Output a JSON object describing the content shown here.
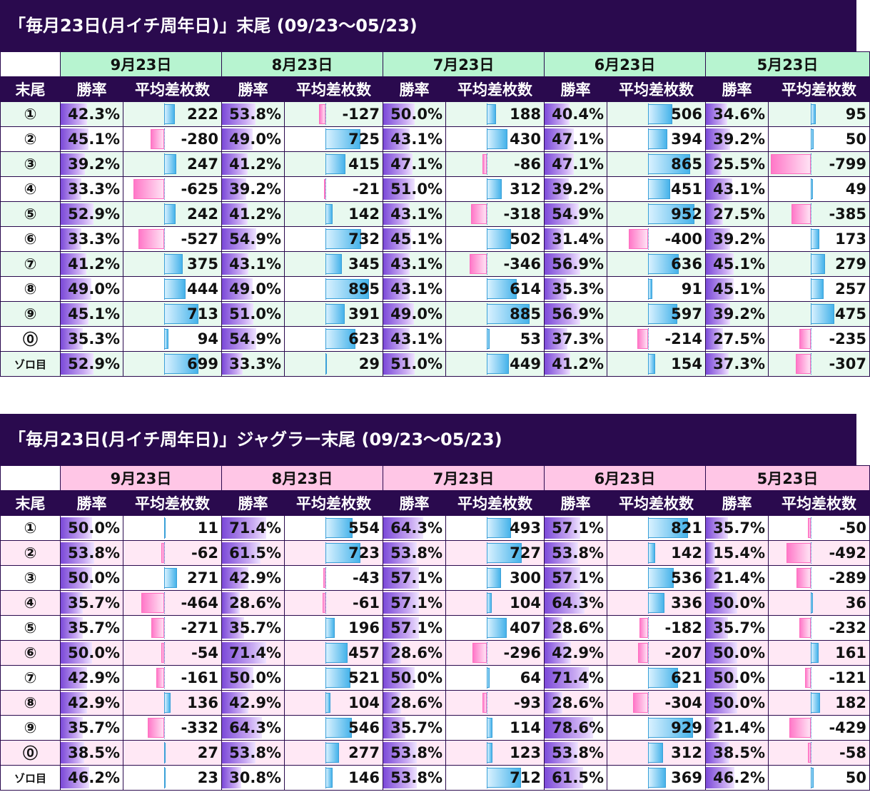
{
  "colors": {
    "title_bg": "#2a0a4e",
    "header_bg": "#2a0a4e",
    "table1_month_bg": "#b7f4d0",
    "table2_month_bg": "#ffc6e6",
    "rate_bar": "#7b49d8",
    "positive_bar": "#46b3ea",
    "negative_bar": "#ff78c8"
  },
  "tables": [
    {
      "title": "「毎月23日(月イチ周年日)」末尾 (09/23〜05/23)",
      "corner_label": "末尾",
      "rate_label": "勝率",
      "diff_label": "平均差枚数",
      "months": [
        "9月23日",
        "8月23日",
        "7月23日",
        "6月23日",
        "5月23日"
      ],
      "rows": [
        {
          "label": "①",
          "cells": [
            [
              "42.3%",
              0,
              222
            ],
            [
              "53.8%",
              0,
              -127
            ],
            [
              "50.0%",
              0,
              188
            ],
            [
              "40.4%",
              0,
              506
            ],
            [
              "34.6%",
              0,
              95
            ]
          ]
        },
        {
          "label": "②",
          "cells": [
            [
              "45.1%",
              0,
              -280
            ],
            [
              "49.0%",
              0,
              725
            ],
            [
              "43.1%",
              0,
              430
            ],
            [
              "47.1%",
              0,
              394
            ],
            [
              "39.2%",
              0,
              50
            ]
          ]
        },
        {
          "label": "③",
          "cells": [
            [
              "39.2%",
              0,
              247
            ],
            [
              "41.2%",
              0,
              415
            ],
            [
              "47.1%",
              0,
              -86
            ],
            [
              "47.1%",
              0,
              865
            ],
            [
              "25.5%",
              0,
              -799
            ]
          ]
        },
        {
          "label": "④",
          "cells": [
            [
              "33.3%",
              0,
              -625
            ],
            [
              "39.2%",
              0,
              -21
            ],
            [
              "51.0%",
              0,
              312
            ],
            [
              "39.2%",
              0,
              451
            ],
            [
              "43.1%",
              0,
              49
            ]
          ]
        },
        {
          "label": "⑤",
          "cells": [
            [
              "52.9%",
              0,
              242
            ],
            [
              "41.2%",
              0,
              142
            ],
            [
              "43.1%",
              0,
              -318
            ],
            [
              "54.9%",
              0,
              952
            ],
            [
              "27.5%",
              0,
              -385
            ]
          ]
        },
        {
          "label": "⑥",
          "cells": [
            [
              "33.3%",
              0,
              -527
            ],
            [
              "54.9%",
              0,
              732
            ],
            [
              "45.1%",
              0,
              502
            ],
            [
              "31.4%",
              0,
              -400
            ],
            [
              "39.2%",
              0,
              173
            ]
          ]
        },
        {
          "label": "⑦",
          "cells": [
            [
              "41.2%",
              0,
              375
            ],
            [
              "43.1%",
              0,
              345
            ],
            [
              "43.1%",
              0,
              -346
            ],
            [
              "56.9%",
              0,
              636
            ],
            [
              "45.1%",
              0,
              279
            ]
          ]
        },
        {
          "label": "⑧",
          "cells": [
            [
              "49.0%",
              0,
              444
            ],
            [
              "49.0%",
              0,
              895
            ],
            [
              "43.1%",
              0,
              614
            ],
            [
              "35.3%",
              0,
              91
            ],
            [
              "45.1%",
              0,
              257
            ]
          ]
        },
        {
          "label": "⑨",
          "cells": [
            [
              "45.1%",
              0,
              713
            ],
            [
              "51.0%",
              0,
              391
            ],
            [
              "49.0%",
              0,
              885
            ],
            [
              "56.9%",
              0,
              597
            ],
            [
              "39.2%",
              0,
              475
            ]
          ]
        },
        {
          "label": "⓪",
          "cells": [
            [
              "35.3%",
              0,
              94
            ],
            [
              "54.9%",
              0,
              623
            ],
            [
              "43.1%",
              0,
              53
            ],
            [
              "37.3%",
              0,
              -214
            ],
            [
              "27.5%",
              0,
              -235
            ]
          ]
        },
        {
          "label": "ゾロ目",
          "cells": [
            [
              "52.9%",
              0,
              699
            ],
            [
              "33.3%",
              0,
              29
            ],
            [
              "51.0%",
              0,
              449
            ],
            [
              "41.2%",
              0,
              154
            ],
            [
              "37.3%",
              0,
              -307
            ]
          ]
        }
      ]
    },
    {
      "title": "「毎月23日(月イチ周年日)」ジャグラー末尾 (09/23〜05/23)",
      "corner_label": "末尾",
      "rate_label": "勝率",
      "diff_label": "平均差枚数",
      "months": [
        "9月23日",
        "8月23日",
        "7月23日",
        "6月23日",
        "5月23日"
      ],
      "rows": [
        {
          "label": "①",
          "cells": [
            [
              "50.0%",
              0,
              11
            ],
            [
              "71.4%",
              0,
              554
            ],
            [
              "64.3%",
              0,
              493
            ],
            [
              "57.1%",
              0,
              821
            ],
            [
              "35.7%",
              0,
              -50
            ]
          ]
        },
        {
          "label": "②",
          "cells": [
            [
              "53.8%",
              0,
              -62
            ],
            [
              "61.5%",
              0,
              723
            ],
            [
              "53.8%",
              0,
              727
            ],
            [
              "53.8%",
              0,
              142
            ],
            [
              "15.4%",
              0,
              -492
            ]
          ]
        },
        {
          "label": "③",
          "cells": [
            [
              "50.0%",
              0,
              271
            ],
            [
              "42.9%",
              0,
              -43
            ],
            [
              "57.1%",
              0,
              300
            ],
            [
              "57.1%",
              0,
              536
            ],
            [
              "21.4%",
              0,
              -289
            ]
          ]
        },
        {
          "label": "④",
          "cells": [
            [
              "35.7%",
              0,
              -464
            ],
            [
              "28.6%",
              0,
              -61
            ],
            [
              "57.1%",
              0,
              104
            ],
            [
              "64.3%",
              0,
              336
            ],
            [
              "50.0%",
              0,
              36
            ]
          ]
        },
        {
          "label": "⑤",
          "cells": [
            [
              "35.7%",
              0,
              -271
            ],
            [
              "35.7%",
              0,
              196
            ],
            [
              "57.1%",
              0,
              407
            ],
            [
              "28.6%",
              0,
              -182
            ],
            [
              "35.7%",
              0,
              -232
            ]
          ]
        },
        {
          "label": "⑥",
          "cells": [
            [
              "50.0%",
              0,
              -54
            ],
            [
              "71.4%",
              0,
              457
            ],
            [
              "28.6%",
              0,
              -296
            ],
            [
              "42.9%",
              0,
              -207
            ],
            [
              "50.0%",
              0,
              161
            ]
          ]
        },
        {
          "label": "⑦",
          "cells": [
            [
              "42.9%",
              0,
              -161
            ],
            [
              "50.0%",
              0,
              521
            ],
            [
              "50.0%",
              0,
              64
            ],
            [
              "71.4%",
              0,
              621
            ],
            [
              "50.0%",
              0,
              -121
            ]
          ]
        },
        {
          "label": "⑧",
          "cells": [
            [
              "42.9%",
              0,
              136
            ],
            [
              "42.9%",
              0,
              104
            ],
            [
              "28.6%",
              0,
              -93
            ],
            [
              "28.6%",
              0,
              -304
            ],
            [
              "50.0%",
              0,
              182
            ]
          ]
        },
        {
          "label": "⑨",
          "cells": [
            [
              "35.7%",
              0,
              -332
            ],
            [
              "64.3%",
              0,
              546
            ],
            [
              "35.7%",
              0,
              114
            ],
            [
              "78.6%",
              0,
              929
            ],
            [
              "21.4%",
              0,
              -429
            ]
          ]
        },
        {
          "label": "⓪",
          "cells": [
            [
              "38.5%",
              0,
              27
            ],
            [
              "53.8%",
              0,
              277
            ],
            [
              "53.8%",
              0,
              123
            ],
            [
              "53.8%",
              0,
              312
            ],
            [
              "38.5%",
              0,
              -58
            ]
          ]
        },
        {
          "label": "ゾロ目",
          "cells": [
            [
              "46.2%",
              0,
              23
            ],
            [
              "30.8%",
              0,
              146
            ],
            [
              "53.8%",
              0,
              712
            ],
            [
              "61.5%",
              0,
              369
            ],
            [
              "46.2%",
              0,
              50
            ]
          ]
        }
      ]
    }
  ]
}
